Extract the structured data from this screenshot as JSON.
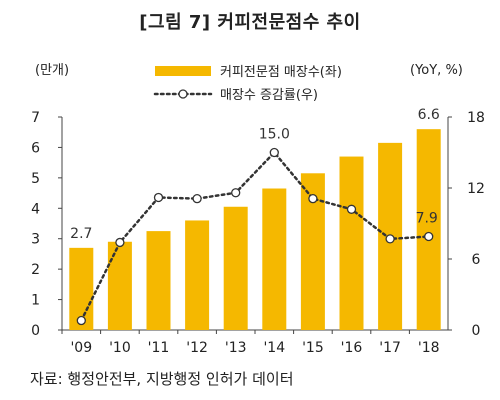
{
  "chart_data": {
    "type": "bar+line",
    "title": "[그림 7] 커피전문점수 추이",
    "left_unit": "(만개)",
    "right_unit": "(YoY, %)",
    "categories": [
      "'09",
      "'10",
      "'11",
      "'12",
      "'13",
      "'14",
      "'15",
      "'16",
      "'17",
      "'18"
    ],
    "series": [
      {
        "name": "커피전문점 매장수(좌)",
        "type": "bar",
        "axis": "left",
        "color": "#F5B800",
        "values": [
          2.7,
          2.9,
          3.25,
          3.6,
          4.05,
          4.65,
          5.15,
          5.7,
          6.15,
          6.6
        ]
      },
      {
        "name": "매장수 증감률(우)",
        "type": "line",
        "axis": "right",
        "color": "#333333",
        "values": [
          0.8,
          7.4,
          11.2,
          11.1,
          11.6,
          15.0,
          11.1,
          10.2,
          7.7,
          7.9
        ]
      }
    ],
    "y_left": {
      "min": 0,
      "max": 7,
      "ticks": [
        0,
        1,
        2,
        3,
        4,
        5,
        6,
        7
      ]
    },
    "y_right": {
      "min": 0,
      "max": 18,
      "ticks": [
        0,
        6,
        12,
        18
      ]
    },
    "data_labels": [
      {
        "series": 0,
        "index": 0,
        "text": "2.7"
      },
      {
        "series": 1,
        "index": 5,
        "text": "15.0"
      },
      {
        "series": 0,
        "index": 9,
        "text": "6.6"
      },
      {
        "series": 1,
        "index": 9,
        "text": "7.9"
      }
    ],
    "legend_position": "top",
    "grid": false
  },
  "source": "자료: 행정안전부, 지방행정 인허가 데이터"
}
